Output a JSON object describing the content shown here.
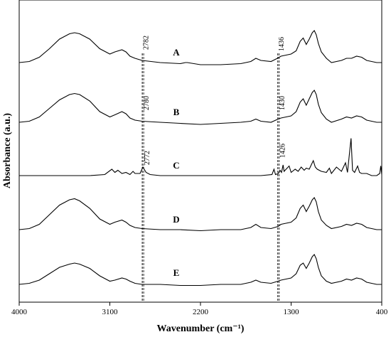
{
  "chart_data": {
    "type": "line",
    "xlabel": "Wavenumber (cm⁻¹)",
    "ylabel": "Absorbance (a.u.)",
    "xlim": [
      4000,
      400
    ],
    "x_reversed": true,
    "xticks": [
      4000,
      3100,
      2200,
      1300,
      400
    ],
    "xtick_labels": [
      "4000",
      "3100",
      "2200",
      "1300",
      "400"
    ],
    "grid": false,
    "series": [
      {
        "name": "A",
        "label_x": 2440,
        "baseline": 0.0,
        "points": [
          [
            4000,
            0.0
          ],
          [
            3900,
            0.01
          ],
          [
            3800,
            0.05
          ],
          [
            3700,
            0.13
          ],
          [
            3600,
            0.22
          ],
          [
            3500,
            0.27
          ],
          [
            3450,
            0.28
          ],
          [
            3400,
            0.27
          ],
          [
            3300,
            0.22
          ],
          [
            3200,
            0.13
          ],
          [
            3100,
            0.08
          ],
          [
            3050,
            0.1
          ],
          [
            2980,
            0.12
          ],
          [
            2940,
            0.1
          ],
          [
            2900,
            0.06
          ],
          [
            2850,
            0.04
          ],
          [
            2780,
            0.02
          ],
          [
            2600,
            0.0
          ],
          [
            2400,
            -0.01
          ],
          [
            2350,
            0.0
          ],
          [
            2330,
            0.0
          ],
          [
            2200,
            -0.02
          ],
          [
            2000,
            -0.02
          ],
          [
            1800,
            -0.01
          ],
          [
            1700,
            0.01
          ],
          [
            1650,
            0.04
          ],
          [
            1600,
            0.02
          ],
          [
            1500,
            0.01
          ],
          [
            1436,
            0.04
          ],
          [
            1400,
            0.06
          ],
          [
            1350,
            0.07
          ],
          [
            1300,
            0.08
          ],
          [
            1250,
            0.11
          ],
          [
            1210,
            0.2
          ],
          [
            1180,
            0.23
          ],
          [
            1150,
            0.17
          ],
          [
            1120,
            0.22
          ],
          [
            1090,
            0.28
          ],
          [
            1070,
            0.3
          ],
          [
            1050,
            0.26
          ],
          [
            1030,
            0.18
          ],
          [
            1000,
            0.1
          ],
          [
            950,
            0.04
          ],
          [
            900,
            0.0
          ],
          [
            800,
            0.02
          ],
          [
            750,
            0.04
          ],
          [
            700,
            0.04
          ],
          [
            650,
            0.06
          ],
          [
            600,
            0.05
          ],
          [
            550,
            0.02
          ],
          [
            500,
            0.01
          ],
          [
            450,
            0.0
          ],
          [
            400,
            0.0
          ]
        ]
      },
      {
        "name": "B",
        "label_x": 2440,
        "baseline": 0.0,
        "points": [
          [
            4000,
            0.0
          ],
          [
            3900,
            0.01
          ],
          [
            3800,
            0.05
          ],
          [
            3700,
            0.13
          ],
          [
            3600,
            0.21
          ],
          [
            3500,
            0.26
          ],
          [
            3450,
            0.27
          ],
          [
            3400,
            0.26
          ],
          [
            3300,
            0.2
          ],
          [
            3200,
            0.1
          ],
          [
            3100,
            0.05
          ],
          [
            3050,
            0.07
          ],
          [
            2980,
            0.1
          ],
          [
            2940,
            0.08
          ],
          [
            2900,
            0.04
          ],
          [
            2850,
            0.02
          ],
          [
            2780,
            0.01
          ],
          [
            2600,
            0.0
          ],
          [
            2400,
            -0.01
          ],
          [
            2200,
            -0.02
          ],
          [
            2000,
            -0.01
          ],
          [
            1800,
            0.0
          ],
          [
            1700,
            0.01
          ],
          [
            1650,
            0.03
          ],
          [
            1600,
            0.01
          ],
          [
            1500,
            0.0
          ],
          [
            1430,
            0.03
          ],
          [
            1400,
            0.04
          ],
          [
            1350,
            0.05
          ],
          [
            1300,
            0.06
          ],
          [
            1250,
            0.1
          ],
          [
            1210,
            0.19
          ],
          [
            1180,
            0.22
          ],
          [
            1150,
            0.16
          ],
          [
            1120,
            0.22
          ],
          [
            1090,
            0.28
          ],
          [
            1070,
            0.3
          ],
          [
            1050,
            0.26
          ],
          [
            1030,
            0.17
          ],
          [
            1000,
            0.09
          ],
          [
            950,
            0.03
          ],
          [
            900,
            0.0
          ],
          [
            800,
            0.03
          ],
          [
            750,
            0.05
          ],
          [
            700,
            0.04
          ],
          [
            650,
            0.06
          ],
          [
            600,
            0.05
          ],
          [
            550,
            0.02
          ],
          [
            500,
            0.01
          ],
          [
            450,
            0.0
          ],
          [
            400,
            0.0
          ]
        ]
      },
      {
        "name": "C",
        "label_x": 2440,
        "baseline": 0.0,
        "points": [
          [
            4000,
            0.0
          ],
          [
            3300,
            0.0
          ],
          [
            3150,
            0.01
          ],
          [
            3080,
            0.06
          ],
          [
            3050,
            0.03
          ],
          [
            3020,
            0.05
          ],
          [
            2980,
            0.02
          ],
          [
            2940,
            0.03
          ],
          [
            2900,
            0.01
          ],
          [
            2870,
            0.04
          ],
          [
            2850,
            0.02
          ],
          [
            2800,
            0.02
          ],
          [
            2772,
            0.08
          ],
          [
            2740,
            0.03
          ],
          [
            2700,
            0.01
          ],
          [
            2600,
            0.0
          ],
          [
            2400,
            0.0
          ],
          [
            2000,
            0.0
          ],
          [
            1800,
            0.0
          ],
          [
            1600,
            0.0
          ],
          [
            1490,
            0.01
          ],
          [
            1470,
            0.06
          ],
          [
            1455,
            0.01
          ],
          [
            1426,
            0.02
          ],
          [
            1410,
            0.05
          ],
          [
            1395,
            0.03
          ],
          [
            1380,
            0.1
          ],
          [
            1370,
            0.04
          ],
          [
            1350,
            0.06
          ],
          [
            1320,
            0.09
          ],
          [
            1300,
            0.03
          ],
          [
            1260,
            0.06
          ],
          [
            1230,
            0.04
          ],
          [
            1200,
            0.08
          ],
          [
            1170,
            0.05
          ],
          [
            1150,
            0.07
          ],
          [
            1120,
            0.06
          ],
          [
            1100,
            0.1
          ],
          [
            1080,
            0.14
          ],
          [
            1060,
            0.08
          ],
          [
            1040,
            0.06
          ],
          [
            1000,
            0.04
          ],
          [
            950,
            0.03
          ],
          [
            920,
            0.07
          ],
          [
            900,
            0.02
          ],
          [
            850,
            0.08
          ],
          [
            800,
            0.04
          ],
          [
            760,
            0.12
          ],
          [
            740,
            0.03
          ],
          [
            705,
            0.35
          ],
          [
            690,
            0.05
          ],
          [
            670,
            0.03
          ],
          [
            640,
            0.09
          ],
          [
            620,
            0.03
          ],
          [
            600,
            0.02
          ],
          [
            550,
            0.02
          ],
          [
            500,
            0.0
          ],
          [
            450,
            0.0
          ],
          [
            420,
            0.02
          ],
          [
            410,
            0.09
          ],
          [
            400,
            0.01
          ]
        ]
      },
      {
        "name": "D",
        "label_x": 2440,
        "baseline": 0.0,
        "points": [
          [
            4000,
            0.0
          ],
          [
            3900,
            0.01
          ],
          [
            3800,
            0.05
          ],
          [
            3700,
            0.14
          ],
          [
            3600,
            0.23
          ],
          [
            3500,
            0.28
          ],
          [
            3450,
            0.29
          ],
          [
            3400,
            0.27
          ],
          [
            3300,
            0.2
          ],
          [
            3200,
            0.1
          ],
          [
            3100,
            0.05
          ],
          [
            3050,
            0.07
          ],
          [
            2980,
            0.09
          ],
          [
            2940,
            0.07
          ],
          [
            2900,
            0.04
          ],
          [
            2850,
            0.02
          ],
          [
            2780,
            0.01
          ],
          [
            2600,
            0.0
          ],
          [
            2400,
            0.0
          ],
          [
            2200,
            -0.01
          ],
          [
            2000,
            0.0
          ],
          [
            1800,
            0.0
          ],
          [
            1700,
            0.02
          ],
          [
            1650,
            0.05
          ],
          [
            1600,
            0.02
          ],
          [
            1500,
            0.01
          ],
          [
            1430,
            0.03
          ],
          [
            1400,
            0.05
          ],
          [
            1350,
            0.06
          ],
          [
            1300,
            0.07
          ],
          [
            1250,
            0.11
          ],
          [
            1210,
            0.2
          ],
          [
            1180,
            0.23
          ],
          [
            1150,
            0.17
          ],
          [
            1120,
            0.22
          ],
          [
            1090,
            0.28
          ],
          [
            1070,
            0.3
          ],
          [
            1050,
            0.26
          ],
          [
            1030,
            0.17
          ],
          [
            1000,
            0.09
          ],
          [
            950,
            0.04
          ],
          [
            900,
            0.01
          ],
          [
            800,
            0.03
          ],
          [
            750,
            0.05
          ],
          [
            700,
            0.04
          ],
          [
            650,
            0.06
          ],
          [
            600,
            0.05
          ],
          [
            550,
            0.02
          ],
          [
            500,
            0.01
          ],
          [
            450,
            0.0
          ],
          [
            400,
            0.0
          ]
        ]
      },
      {
        "name": "E",
        "label_x": 2440,
        "baseline": 0.0,
        "points": [
          [
            4000,
            0.0
          ],
          [
            3900,
            0.01
          ],
          [
            3800,
            0.04
          ],
          [
            3700,
            0.1
          ],
          [
            3600,
            0.16
          ],
          [
            3500,
            0.19
          ],
          [
            3450,
            0.2
          ],
          [
            3400,
            0.19
          ],
          [
            3300,
            0.15
          ],
          [
            3200,
            0.08
          ],
          [
            3100,
            0.03
          ],
          [
            3050,
            0.04
          ],
          [
            2980,
            0.06
          ],
          [
            2940,
            0.05
          ],
          [
            2900,
            0.03
          ],
          [
            2850,
            0.01
          ],
          [
            2780,
            0.0
          ],
          [
            2600,
            0.0
          ],
          [
            2400,
            -0.01
          ],
          [
            2200,
            -0.01
          ],
          [
            2000,
            0.0
          ],
          [
            1800,
            0.0
          ],
          [
            1700,
            0.02
          ],
          [
            1650,
            0.04
          ],
          [
            1600,
            0.02
          ],
          [
            1500,
            0.01
          ],
          [
            1430,
            0.03
          ],
          [
            1400,
            0.04
          ],
          [
            1350,
            0.05
          ],
          [
            1300,
            0.06
          ],
          [
            1250,
            0.1
          ],
          [
            1210,
            0.18
          ],
          [
            1180,
            0.2
          ],
          [
            1150,
            0.15
          ],
          [
            1120,
            0.2
          ],
          [
            1090,
            0.26
          ],
          [
            1070,
            0.28
          ],
          [
            1050,
            0.24
          ],
          [
            1030,
            0.16
          ],
          [
            1000,
            0.08
          ],
          [
            950,
            0.03
          ],
          [
            900,
            0.01
          ],
          [
            800,
            0.03
          ],
          [
            750,
            0.05
          ],
          [
            700,
            0.04
          ],
          [
            650,
            0.06
          ],
          [
            600,
            0.05
          ],
          [
            550,
            0.02
          ],
          [
            500,
            0.01
          ],
          [
            450,
            0.0
          ],
          [
            400,
            0.0
          ]
        ]
      }
    ],
    "annotations": [
      {
        "series": "A",
        "x": 2782,
        "label": "2782"
      },
      {
        "series": "A",
        "x": 1436,
        "label": "1436"
      },
      {
        "series": "B",
        "x": 2780,
        "label": "2780"
      },
      {
        "series": "B",
        "x": 1430,
        "label": "1430"
      },
      {
        "series": "C",
        "x": 2772,
        "label": "2772"
      },
      {
        "series": "C",
        "x": 1426,
        "label": "1426"
      }
    ],
    "reference_lines": [
      2778,
      1432
    ]
  }
}
